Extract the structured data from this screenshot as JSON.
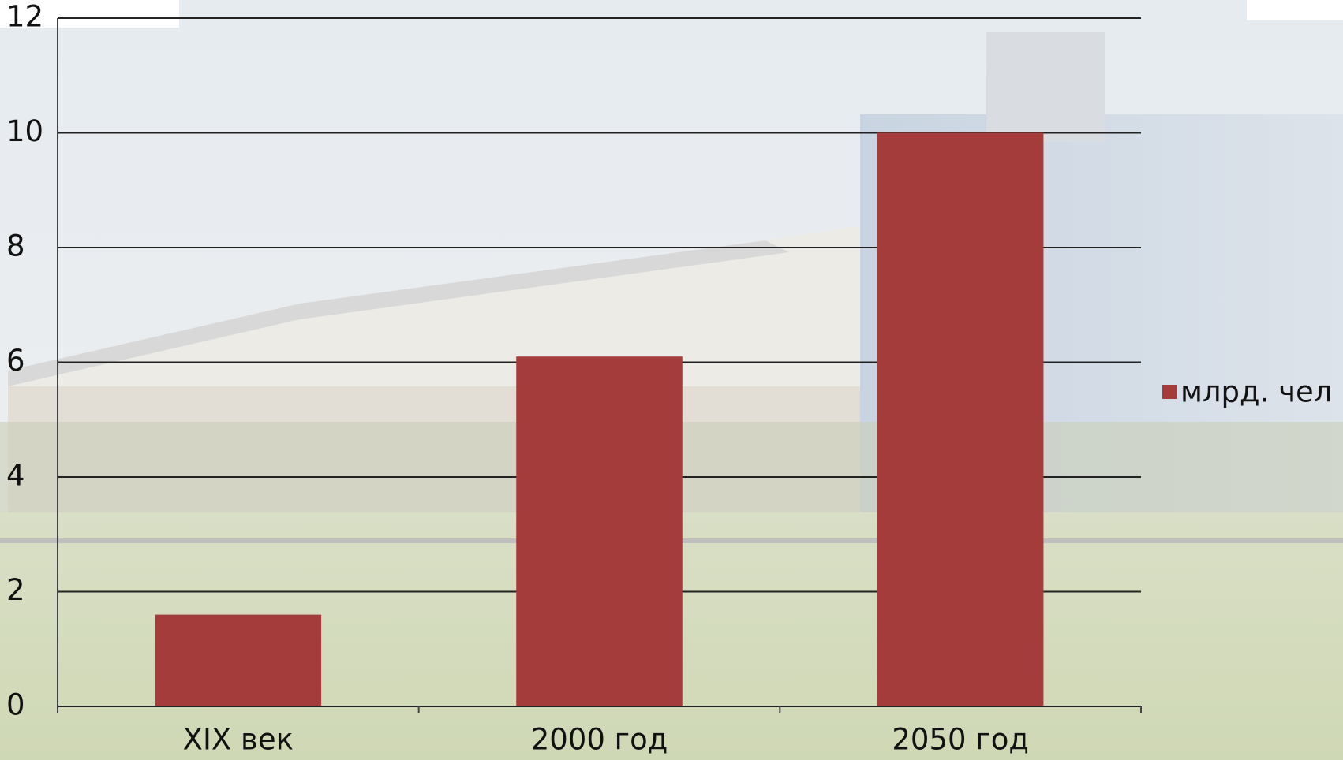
{
  "chart_data": {
    "type": "bar",
    "categories": [
      "XIX век",
      "2000 год",
      "2050 год"
    ],
    "series": [
      {
        "name": "млрд. чел",
        "color": "#a33c3b",
        "values": [
          1.6,
          6.1,
          10
        ]
      }
    ],
    "ylim": [
      0,
      12
    ],
    "yticks": [
      0,
      2,
      4,
      6,
      8,
      10,
      12
    ],
    "grid": true,
    "legend": "right"
  }
}
